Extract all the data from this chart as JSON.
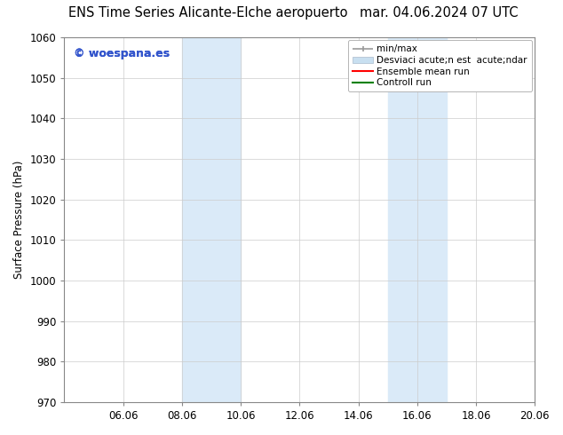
{
  "title_left": "ENS Time Series Alicante-Elche aeropuerto",
  "title_right": "mar. 04.06.2024 07 UTC",
  "ylabel": "Surface Pressure (hPa)",
  "ylim": [
    970,
    1060
  ],
  "yticks": [
    970,
    980,
    990,
    1000,
    1010,
    1020,
    1030,
    1040,
    1050,
    1060
  ],
  "xtick_labels": [
    "06.06",
    "08.06",
    "10.06",
    "12.06",
    "14.06",
    "16.06",
    "18.06",
    "20.06"
  ],
  "xtick_positions": [
    2,
    4,
    6,
    8,
    10,
    12,
    14,
    16
  ],
  "xlim": [
    0,
    16
  ],
  "shaded_bands": [
    {
      "x_start": 4,
      "x_end": 6
    },
    {
      "x_start": 11,
      "x_end": 13
    }
  ],
  "shaded_color": "#daeaf8",
  "background_color": "#ffffff",
  "watermark_text": "© woespana.es",
  "watermark_color": "#3355cc",
  "legend_label_1": "min/max",
  "legend_label_2": "Desviaci acute;n est  acute;ndar",
  "legend_label_3": "Ensemble mean run",
  "legend_label_4": "Controll run",
  "legend_color_1": "#999999",
  "legend_color_2": "#c8dff0",
  "legend_color_3": "#ff0000",
  "legend_color_4": "#008000",
  "title_fontsize": 10.5,
  "tick_fontsize": 8.5,
  "ylabel_fontsize": 8.5,
  "legend_fontsize": 7.5,
  "watermark_fontsize": 9
}
